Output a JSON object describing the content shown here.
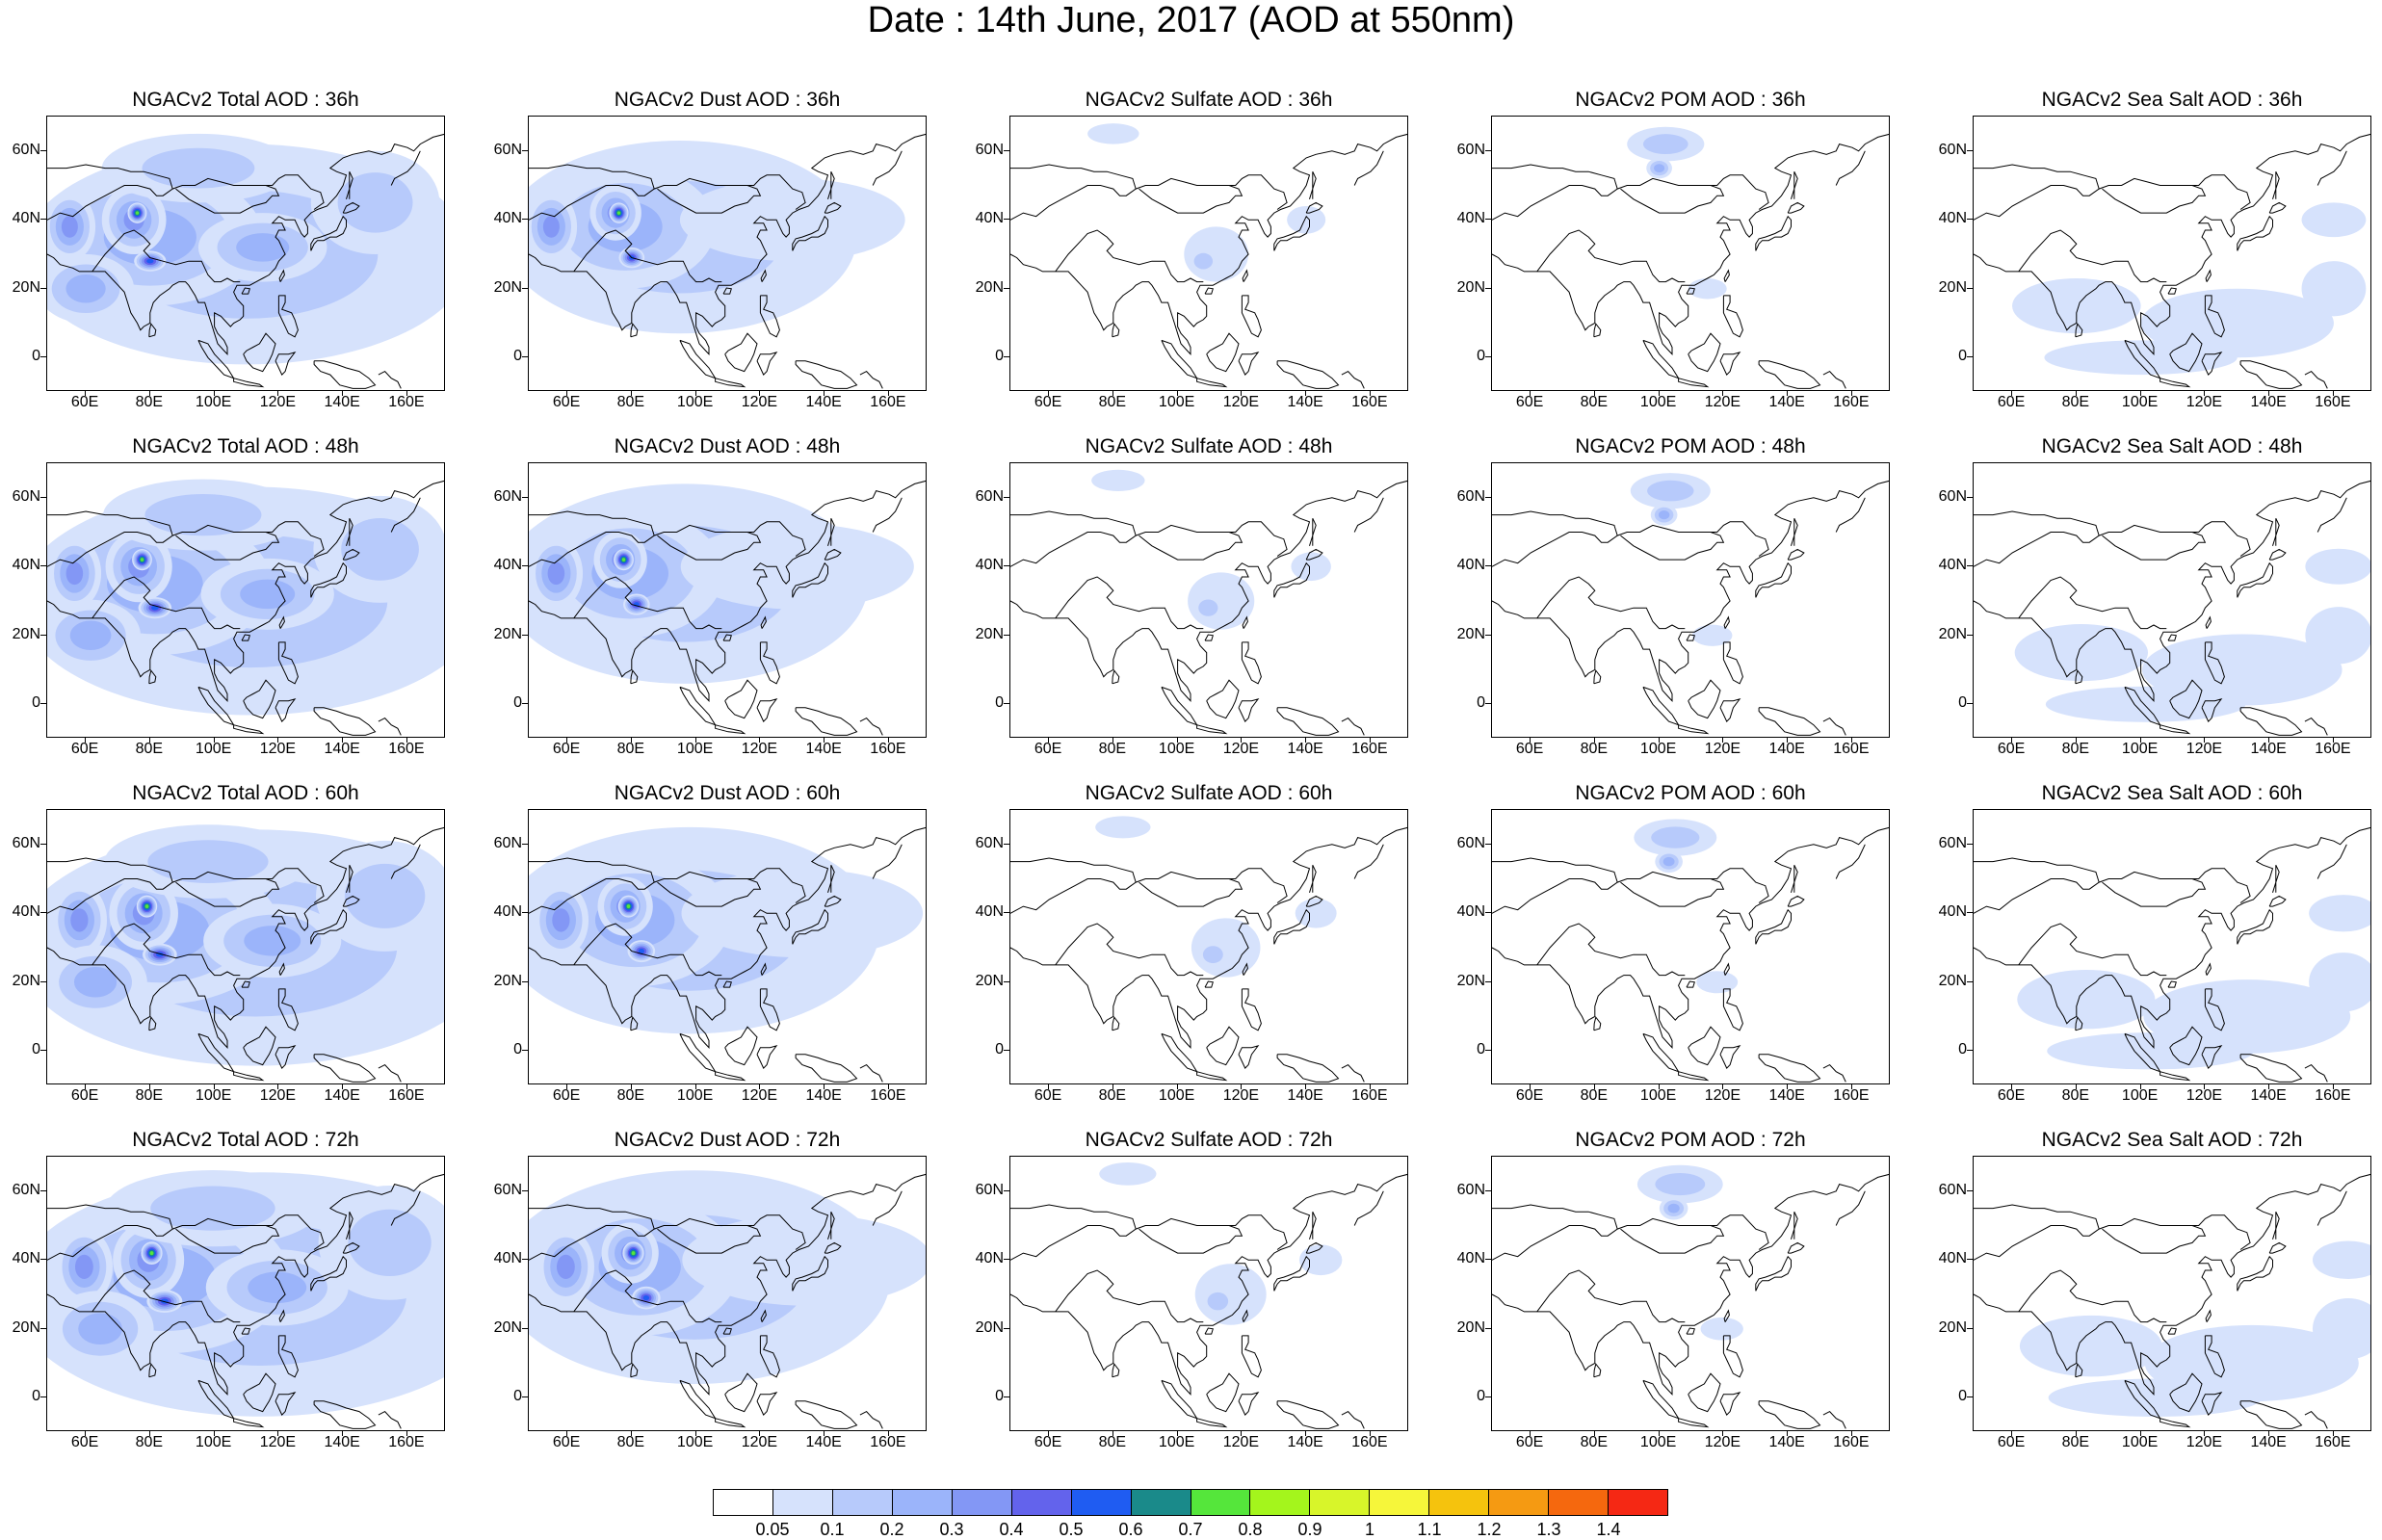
{
  "title": "Date : 14th June, 2017 (AOD at 550nm)",
  "colors": {
    "background": "#ffffff",
    "coast": "#000000",
    "scale": [
      "#ffffff",
      "#d6e2fc",
      "#b7cafb",
      "#9bb4fa",
      "#8397f5",
      "#6363ec",
      "#1f5cf2",
      "#1a8a8a",
      "#55e63b",
      "#a4f51c",
      "#d8f52a",
      "#f6f63a",
      "#f5c30d",
      "#f59a12",
      "#f5680e",
      "#f52814"
    ]
  },
  "colorbar": {
    "labels": [
      "0.05",
      "0.1",
      "0.2",
      "0.3",
      "0.4",
      "0.5",
      "0.6",
      "0.7",
      "0.8",
      "0.9",
      "1",
      "1.1",
      "1.2",
      "1.3",
      "1.4"
    ]
  },
  "axes": {
    "x_labels": [
      "60E",
      "80E",
      "100E",
      "120E",
      "140E",
      "160E"
    ],
    "y_labels": [
      "60N",
      "40N",
      "20N",
      "0"
    ]
  },
  "panels": [
    {
      "title": "NGACv2 Total AOD : 36h",
      "species": "total"
    },
    {
      "title": "NGACv2 Dust AOD : 36h",
      "species": "dust"
    },
    {
      "title": "NGACv2 Sulfate AOD : 36h",
      "species": "sulfate"
    },
    {
      "title": "NGACv2 POM AOD : 36h",
      "species": "pom"
    },
    {
      "title": "NGACv2 Sea Salt AOD : 36h",
      "species": "seasalt"
    },
    {
      "title": "NGACv2 Total AOD : 48h",
      "species": "total"
    },
    {
      "title": "NGACv2 Dust AOD : 48h",
      "species": "dust"
    },
    {
      "title": "NGACv2 Sulfate AOD : 48h",
      "species": "sulfate"
    },
    {
      "title": "NGACv2 POM AOD : 48h",
      "species": "pom"
    },
    {
      "title": "NGACv2 Sea Salt AOD : 48h",
      "species": "seasalt"
    },
    {
      "title": "NGACv2 Total AOD : 60h",
      "species": "total"
    },
    {
      "title": "NGACv2 Dust AOD : 60h",
      "species": "dust"
    },
    {
      "title": "NGACv2 Sulfate AOD : 60h",
      "species": "sulfate"
    },
    {
      "title": "NGACv2 POM AOD : 60h",
      "species": "pom"
    },
    {
      "title": "NGACv2 Sea Salt AOD : 60h",
      "species": "seasalt"
    },
    {
      "title": "NGACv2 Total AOD : 72h",
      "species": "total"
    },
    {
      "title": "NGACv2 Dust AOD : 72h",
      "species": "dust"
    },
    {
      "title": "NGACv2 Sulfate AOD : 72h",
      "species": "sulfate"
    },
    {
      "title": "NGACv2 POM AOD : 72h",
      "species": "pom"
    },
    {
      "title": "NGACv2 Sea Salt  AOD : 72h",
      "species": "seasalt"
    }
  ]
}
